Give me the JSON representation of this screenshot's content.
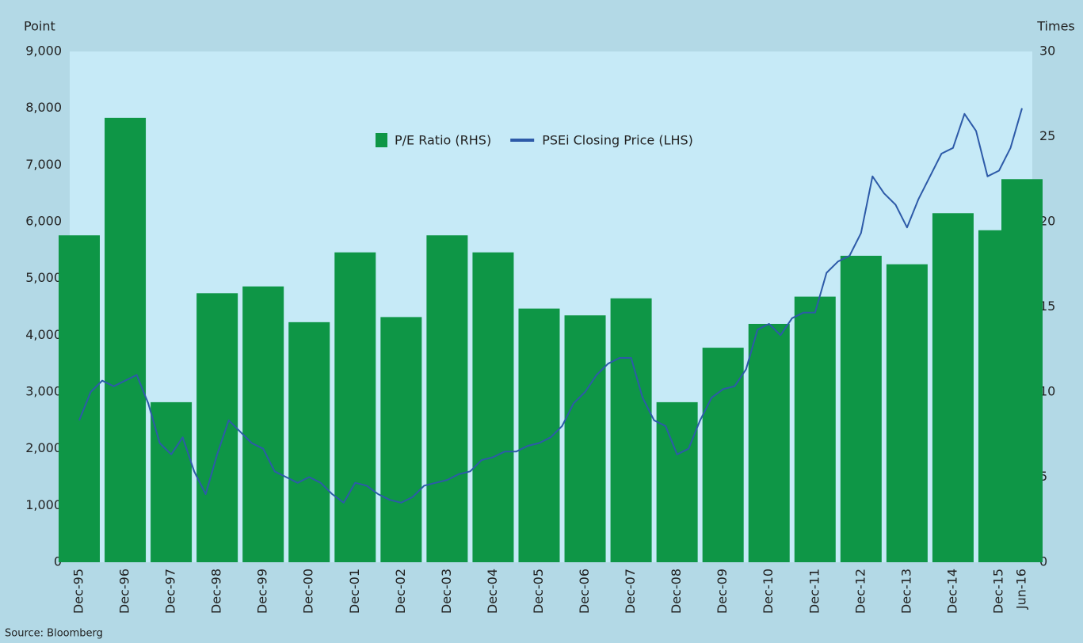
{
  "chart_data": {
    "type": "bar-line",
    "y_axis_label": "Point",
    "y2_axis_label": "Times",
    "source": "Source: Bloomberg",
    "categories": [
      "Dec-95",
      "Dec-96",
      "Dec-97",
      "Dec-98",
      "Dec-99",
      "Dec-00",
      "Dec-01",
      "Dec-02",
      "Dec-03",
      "Dec-04",
      "Dec-05",
      "Dec-06",
      "Dec-07",
      "Dec-08",
      "Dec-09",
      "Dec-10",
      "Dec-11",
      "Dec-12",
      "Dec-13",
      "Dec-14",
      "Dec-15",
      "Jun-16"
    ],
    "series": [
      {
        "name": "P/E Ratio (RHS)",
        "type": "bar",
        "axis": "y2",
        "color": "#0e9646",
        "values": [
          19.2,
          26.1,
          9.4,
          15.8,
          16.2,
          14.1,
          18.2,
          14.4,
          19.2,
          18.2,
          14.9,
          14.5,
          15.5,
          9.4,
          12.6,
          14.0,
          15.6,
          18.0,
          17.5,
          20.5,
          19.5,
          22.5
        ]
      },
      {
        "name": "PSEi Closing Price (LHS)",
        "type": "line",
        "color": "#2d5aa8",
        "x": [
          "Dec-95",
          "Mar-96",
          "Jun-96",
          "Sep-96",
          "Dec-96",
          "Mar-97",
          "Jun-97",
          "Sep-97",
          "Dec-97",
          "Mar-98",
          "Jun-98",
          "Sep-98",
          "Dec-98",
          "Mar-99",
          "Jun-99",
          "Sep-99",
          "Dec-99",
          "Mar-00",
          "Jun-00",
          "Sep-00",
          "Dec-00",
          "Mar-01",
          "Jun-01",
          "Sep-01",
          "Dec-01",
          "Mar-02",
          "Jun-02",
          "Sep-02",
          "Dec-02",
          "Mar-03",
          "Jun-03",
          "Sep-03",
          "Dec-03",
          "Mar-04",
          "Jun-04",
          "Sep-04",
          "Dec-04",
          "Mar-05",
          "Jun-05",
          "Sep-05",
          "Dec-05",
          "Mar-06",
          "Jun-06",
          "Sep-06",
          "Dec-06",
          "Mar-07",
          "Jun-07",
          "Sep-07",
          "Dec-07",
          "Mar-08",
          "Jun-08",
          "Sep-08",
          "Dec-08",
          "Mar-09",
          "Jun-09",
          "Sep-09",
          "Dec-09",
          "Mar-10",
          "Jun-10",
          "Sep-10",
          "Dec-10",
          "Mar-11",
          "Jun-11",
          "Sep-11",
          "Dec-11",
          "Mar-12",
          "Jun-12",
          "Sep-12",
          "Dec-12",
          "Mar-13",
          "Jun-13",
          "Sep-13",
          "Dec-13",
          "Mar-14",
          "Jun-14",
          "Sep-14",
          "Dec-14",
          "Mar-15",
          "Jun-15",
          "Sep-15",
          "Dec-15",
          "Mar-16",
          "Jun-16"
        ],
        "values": [
          2500,
          3000,
          3200,
          3100,
          3200,
          3300,
          2800,
          2100,
          1900,
          2200,
          1600,
          1200,
          1900,
          2500,
          2300,
          2100,
          2000,
          1600,
          1500,
          1400,
          1500,
          1400,
          1200,
          1050,
          1400,
          1350,
          1200,
          1100,
          1050,
          1150,
          1350,
          1400,
          1450,
          1550,
          1600,
          1800,
          1850,
          1950,
          1950,
          2050,
          2100,
          2200,
          2400,
          2800,
          3000,
          3300,
          3500,
          3600,
          3600,
          2900,
          2500,
          2400,
          1900,
          2000,
          2500,
          2900,
          3050,
          3100,
          3400,
          4100,
          4200,
          4000,
          4300,
          4400,
          4400,
          5100,
          5300,
          5400,
          5800,
          6800,
          6500,
          6300,
          5900,
          6400,
          6800,
          7200,
          7300,
          7900,
          7600,
          6800,
          6900,
          7300,
          8000
        ]
      }
    ],
    "ylim": [
      0,
      9000
    ],
    "yticks": [
      0,
      {
        "value": 1000,
        "label": "1,000"
      },
      {
        "value": 2000,
        "label": "2,000"
      },
      {
        "value": 3000,
        "label": "3,000"
      },
      {
        "value": 4000,
        "label": "4,000"
      },
      {
        "value": 5000,
        "label": "5,000"
      },
      {
        "value": 6000,
        "label": "6,000"
      },
      {
        "value": 7000,
        "label": "7,000"
      },
      {
        "value": 8000,
        "label": "8,000"
      },
      {
        "value": 9000,
        "label": "9,000"
      }
    ],
    "y2lim": [
      0,
      30
    ],
    "y2ticks": [
      0,
      5,
      10,
      15,
      20,
      25,
      30
    ],
    "legend": "top-center"
  }
}
